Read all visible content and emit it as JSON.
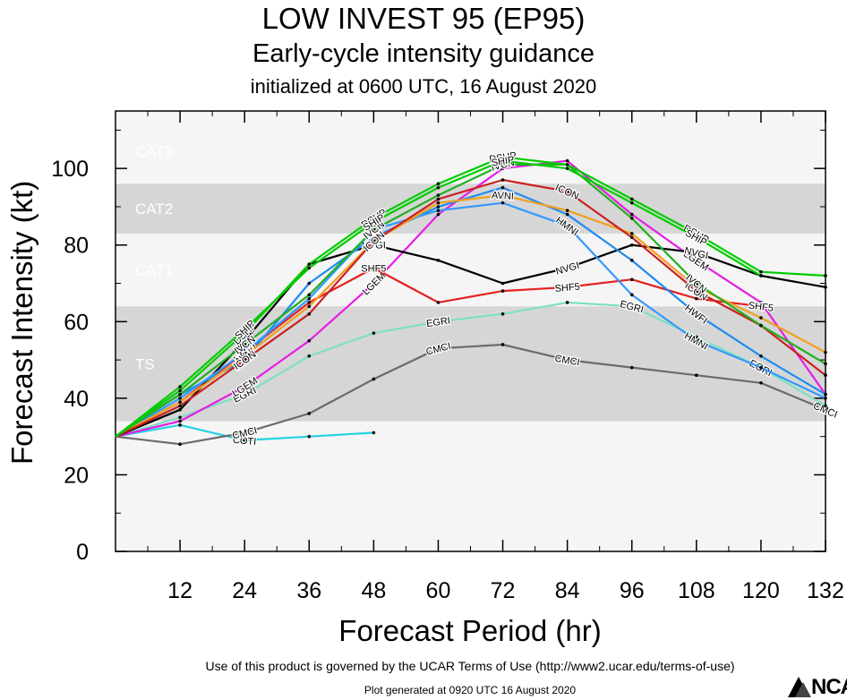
{
  "chart_data": {
    "type": "line",
    "title": "LOW INVEST 95 (EP95)",
    "subtitle": "Early-cycle intensity guidance",
    "subtitle2": "initialized at 0600 UTC, 16 August 2020",
    "xlabel": "Forecast Period (hr)",
    "ylabel": "Forecast Intensity (kt)",
    "xlim": [
      0,
      132
    ],
    "ylim": [
      0,
      115
    ],
    "xticks": [
      12,
      24,
      36,
      48,
      60,
      72,
      84,
      96,
      108,
      120,
      132
    ],
    "yticks": [
      0,
      20,
      40,
      60,
      80,
      100
    ],
    "bands": [
      {
        "label": "TS",
        "from": 34,
        "to": 64,
        "color": "#d6d6d6"
      },
      {
        "label": "CAT1",
        "from": 64,
        "to": 83,
        "color": "#f5f5f5"
      },
      {
        "label": "CAT2",
        "from": 83,
        "to": 96,
        "color": "#d6d6d6"
      },
      {
        "label": "CAT3",
        "from": 96,
        "to": 113,
        "color": "#f5f5f5"
      }
    ],
    "series": [
      {
        "name": "COTI",
        "color": "#22d3e6",
        "labels": [
          24
        ],
        "points": [
          [
            0,
            30
          ],
          [
            12,
            33
          ],
          [
            24,
            29
          ],
          [
            36,
            30
          ],
          [
            48,
            31
          ]
        ]
      },
      {
        "name": "CMCI",
        "color": "#6b6b6b",
        "labels": [
          24,
          60,
          84,
          132
        ],
        "points": [
          [
            0,
            30
          ],
          [
            12,
            28
          ],
          [
            24,
            31
          ],
          [
            36,
            36
          ],
          [
            48,
            45
          ],
          [
            60,
            53
          ],
          [
            72,
            54
          ],
          [
            84,
            50
          ],
          [
            96,
            48
          ],
          [
            108,
            46
          ],
          [
            120,
            44
          ],
          [
            132,
            37
          ]
        ]
      },
      {
        "name": "EGRI",
        "color": "#7fe0c0",
        "labels": [
          24,
          60,
          96,
          120
        ],
        "points": [
          [
            0,
            30
          ],
          [
            12,
            35
          ],
          [
            24,
            41
          ],
          [
            36,
            51
          ],
          [
            48,
            57
          ],
          [
            60,
            60
          ],
          [
            72,
            62
          ],
          [
            84,
            65
          ],
          [
            96,
            64
          ],
          [
            108,
            56
          ],
          [
            120,
            48
          ],
          [
            132,
            38
          ]
        ]
      },
      {
        "name": "LGEM",
        "color": "#e61ee6",
        "labels": [
          24,
          48,
          108
        ],
        "points": [
          [
            0,
            30
          ],
          [
            12,
            34
          ],
          [
            24,
            43
          ],
          [
            36,
            55
          ],
          [
            48,
            70
          ],
          [
            60,
            88
          ],
          [
            72,
            100
          ],
          [
            84,
            102
          ],
          [
            96,
            88
          ],
          [
            108,
            76
          ],
          [
            120,
            65
          ],
          [
            132,
            41
          ]
        ]
      },
      {
        "name": "SHF5",
        "color": "#e62020",
        "labels": [
          48,
          84,
          120
        ],
        "points": [
          [
            0,
            30
          ],
          [
            12,
            39
          ],
          [
            24,
            52
          ],
          [
            36,
            65
          ],
          [
            48,
            74
          ],
          [
            60,
            65
          ],
          [
            72,
            68
          ],
          [
            84,
            69
          ],
          [
            96,
            71
          ],
          [
            108,
            66
          ],
          [
            120,
            64
          ]
        ]
      },
      {
        "name": "NVGI",
        "color": "#000000",
        "labels": [
          48,
          84,
          108
        ],
        "points": [
          [
            0,
            30
          ],
          [
            12,
            37
          ],
          [
            24,
            55
          ],
          [
            36,
            75
          ],
          [
            48,
            80
          ],
          [
            60,
            76
          ],
          [
            72,
            70
          ],
          [
            84,
            74
          ],
          [
            96,
            80
          ],
          [
            108,
            78
          ],
          [
            120,
            72
          ],
          [
            132,
            69
          ]
        ]
      },
      {
        "name": "HWFI",
        "color": "#1e8cf0",
        "labels": [
          24,
          108
        ],
        "points": [
          [
            0,
            30
          ],
          [
            12,
            41
          ],
          [
            24,
            50
          ],
          [
            36,
            70
          ],
          [
            48,
            82
          ],
          [
            60,
            90
          ],
          [
            72,
            95
          ],
          [
            84,
            88
          ],
          [
            96,
            76
          ],
          [
            108,
            62
          ],
          [
            120,
            51
          ],
          [
            132,
            41
          ]
        ]
      },
      {
        "name": "HMNI",
        "color": "#3399ff",
        "labels": [
          24,
          84,
          108
        ],
        "points": [
          [
            0,
            30
          ],
          [
            12,
            40
          ],
          [
            24,
            52
          ],
          [
            36,
            66
          ],
          [
            48,
            84
          ],
          [
            60,
            89
          ],
          [
            72,
            91
          ],
          [
            84,
            85
          ],
          [
            96,
            67
          ],
          [
            108,
            55
          ],
          [
            120,
            48
          ],
          [
            132,
            40
          ]
        ]
      },
      {
        "name": "AVNI",
        "color": "#f0a020",
        "labels": [
          24,
          48,
          72,
          108
        ],
        "points": [
          [
            0,
            30
          ],
          [
            12,
            39
          ],
          [
            24,
            51
          ],
          [
            36,
            64
          ],
          [
            48,
            81
          ],
          [
            60,
            91
          ],
          [
            72,
            93
          ],
          [
            84,
            89
          ],
          [
            96,
            83
          ],
          [
            108,
            69
          ],
          [
            120,
            61
          ],
          [
            132,
            52
          ]
        ]
      },
      {
        "name": "ICON",
        "color": "#cc2020",
        "labels": [
          24,
          48,
          84,
          108
        ],
        "points": [
          [
            0,
            30
          ],
          [
            12,
            38
          ],
          [
            24,
            50
          ],
          [
            36,
            62
          ],
          [
            48,
            81
          ],
          [
            60,
            92
          ],
          [
            72,
            97
          ],
          [
            84,
            94
          ],
          [
            96,
            82
          ],
          [
            108,
            68
          ],
          [
            120,
            59
          ],
          [
            132,
            46
          ]
        ]
      },
      {
        "name": "IVCN",
        "color": "#20b020",
        "labels": [
          24,
          48,
          72,
          108
        ],
        "points": [
          [
            0,
            30
          ],
          [
            12,
            41
          ],
          [
            24,
            54
          ],
          [
            36,
            67
          ],
          [
            48,
            84
          ],
          [
            60,
            93
          ],
          [
            72,
            101
          ],
          [
            84,
            101
          ],
          [
            96,
            87
          ],
          [
            108,
            70
          ],
          [
            120,
            59
          ],
          [
            132,
            49
          ]
        ]
      },
      {
        "name": "DSHP",
        "color": "#00cc00",
        "labels": [
          24,
          48,
          72,
          108
        ],
        "points": [
          [
            0,
            30
          ],
          [
            12,
            42
          ],
          [
            24,
            57
          ],
          [
            36,
            75
          ],
          [
            48,
            87
          ],
          [
            60,
            96
          ],
          [
            72,
            103
          ],
          [
            84,
            101
          ],
          [
            96,
            92
          ],
          [
            108,
            83
          ],
          [
            120,
            73
          ],
          [
            132,
            72
          ]
        ]
      },
      {
        "name": "SHIP",
        "color": "#00cc00",
        "labels": [
          24,
          48,
          72,
          108
        ],
        "points": [
          [
            0,
            30
          ],
          [
            12,
            43
          ],
          [
            24,
            58
          ],
          [
            36,
            74
          ],
          [
            48,
            86
          ],
          [
            60,
            95
          ],
          [
            72,
            102
          ],
          [
            84,
            100
          ],
          [
            96,
            91
          ],
          [
            108,
            82
          ],
          [
            120,
            72
          ]
        ]
      }
    ]
  },
  "footer": {
    "terms": "Use of this product is governed by the UCAR Terms of Use (http://www2.ucar.edu/terms-of-use)",
    "generated": "Plot generated at 0920 UTC   16 August 2020",
    "logo_text": "NCAR"
  }
}
